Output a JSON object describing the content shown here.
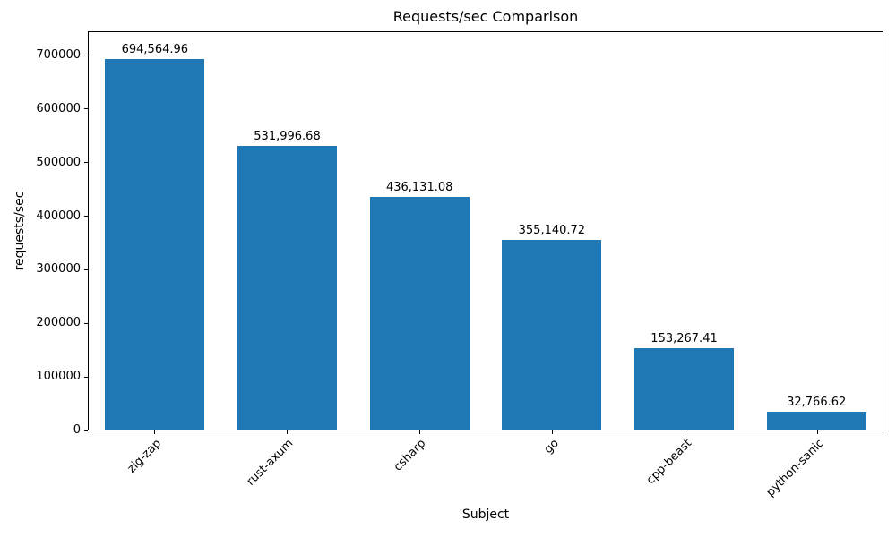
{
  "chart_data": {
    "type": "bar",
    "title": "Requests/sec Comparison",
    "xlabel": "Subject",
    "ylabel": "requests/sec",
    "categories": [
      "zig-zap",
      "rust-axum",
      "csharp",
      "go",
      "cpp-beast",
      "python-sanic"
    ],
    "values": [
      694564.96,
      531996.68,
      436131.08,
      355140.72,
      153267.41,
      32766.62
    ],
    "value_labels": [
      "694,564.96",
      "531,996.68",
      "436,131.08",
      "355,140.72",
      "153,267.41",
      "32,766.62"
    ],
    "yticks": [
      0,
      100000,
      200000,
      300000,
      400000,
      500000,
      600000,
      700000
    ],
    "ytick_labels": [
      "0",
      "100000",
      "200000",
      "300000",
      "400000",
      "500000",
      "600000",
      "700000"
    ],
    "ylim": [
      0,
      745000
    ],
    "xtick_rotation": 45,
    "bar_color": "#1f77b4",
    "text_color": "#000000",
    "background_color": "#ffffff",
    "grid": false,
    "legend": "none"
  }
}
